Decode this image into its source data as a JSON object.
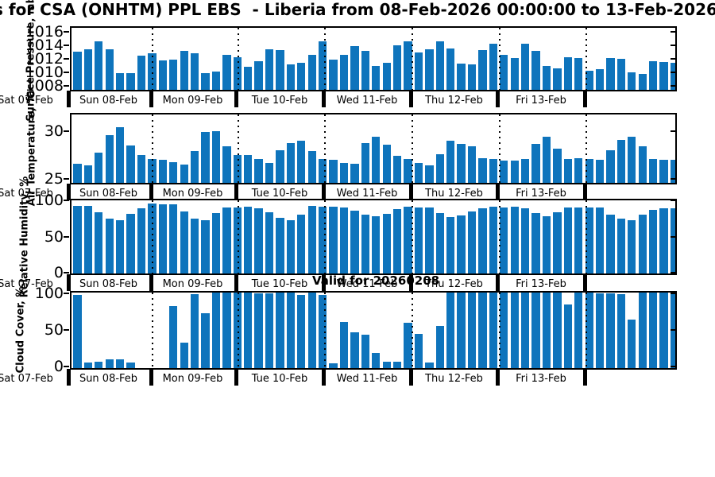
{
  "figure": {
    "title": "s for CSA (ONHTM) PPL EBS  - Liberia from 08-Feb-2026 00:00:00 to 13-Feb-2026 21:00:00",
    "annotation": "Valid for 20260208",
    "colors": {
      "bar": "#0e74bc",
      "axis": "#000000"
    }
  },
  "x_axis": {
    "day_labels": [
      "Sat 07-Feb",
      "Sun 08-Feb",
      "Mon 09-Feb",
      "Tue 10-Feb",
      "Wed 11-Feb",
      "Thu 12-Feb",
      "Fri 13-Feb"
    ]
  },
  "chart_data": [
    {
      "type": "bar",
      "name": "surface-pressure",
      "ylabel": "Surface Pressure, mb",
      "yticks": [
        1016,
        1014,
        1012,
        1010,
        1008
      ],
      "ylim": [
        1007.2,
        1016.8
      ],
      "values": [
        1012.8,
        1013.2,
        1014.3,
        1013.2,
        1009.7,
        1009.7,
        1012.2,
        1012.6,
        1011.5,
        1011.6,
        1013.0,
        1012.6,
        1009.7,
        1009.9,
        1012.3,
        1012.0,
        1010.6,
        1011.4,
        1013.2,
        1013.1,
        1010.9,
        1011.2,
        1012.4,
        1014.4,
        1011.6,
        1012.4,
        1013.7,
        1012.9,
        1010.7,
        1011.2,
        1013.8,
        1014.3,
        1012.7,
        1013.2,
        1014.4,
        1013.3,
        1011.1,
        1010.9,
        1013.1,
        1014.0,
        1012.3,
        1011.9,
        1014.0,
        1013.0,
        1010.7,
        1010.4,
        1012.0,
        1011.9,
        1010.0,
        1010.2,
        1011.9,
        1011.8,
        1009.8,
        1009.5,
        1011.4,
        1011.3,
        1011.2
      ]
    },
    {
      "type": "bar",
      "name": "air-temperature",
      "ylabel": "Air Temperature, °C",
      "yticks": [
        30,
        25
      ],
      "ylim": [
        24.4,
        31.9
      ],
      "values": [
        26.4,
        26.2,
        27.6,
        29.4,
        30.2,
        28.3,
        27.3,
        26.9,
        26.8,
        26.6,
        26.3,
        27.7,
        29.7,
        29.8,
        28.2,
        27.3,
        27.3,
        26.9,
        26.5,
        27.8,
        28.6,
        28.8,
        27.7,
        26.9,
        26.8,
        26.5,
        26.4,
        28.6,
        29.2,
        28.4,
        27.2,
        26.9,
        26.5,
        26.2,
        27.4,
        28.8,
        28.5,
        28.2,
        27.0,
        26.9,
        26.7,
        26.7,
        26.9,
        28.5,
        29.2,
        28.0,
        26.9,
        27.0,
        26.9,
        26.8,
        27.8,
        28.9,
        29.2,
        28.2,
        26.9,
        26.8,
        26.8
      ]
    },
    {
      "type": "bar",
      "name": "relative-humidity",
      "ylabel": "Relative Humidity, %",
      "yticks": [
        100,
        50,
        0
      ],
      "ylim": [
        -3,
        102
      ],
      "values": [
        90,
        90,
        81,
        72,
        70,
        79,
        87,
        93,
        92,
        92,
        82,
        73,
        70,
        80,
        88,
        88,
        89,
        87,
        81,
        74,
        70,
        78,
        90,
        89,
        89,
        88,
        84,
        78,
        76,
        79,
        86,
        89,
        88,
        88,
        80,
        75,
        77,
        82,
        87,
        89,
        88,
        89,
        87,
        80,
        76,
        81,
        88,
        88,
        88,
        88,
        78,
        72,
        70,
        78,
        85,
        87,
        87
      ]
    },
    {
      "type": "bar",
      "name": "cloud-cover",
      "ylabel": "Cloud Cover, %",
      "yticks": [
        100,
        50,
        0
      ],
      "ylim": [
        -4,
        103
      ],
      "values": [
        95,
        4,
        5,
        8,
        8,
        4,
        0,
        0,
        0,
        80,
        31,
        97,
        71,
        100,
        100,
        100,
        100,
        98,
        98,
        100,
        100,
        96,
        100,
        95,
        2,
        59,
        45,
        41,
        17,
        5,
        5,
        58,
        43,
        4,
        53,
        100,
        100,
        100,
        100,
        100,
        100,
        100,
        99,
        100,
        100,
        100,
        82,
        100,
        100,
        98,
        98,
        97,
        62,
        100,
        100,
        100,
        100
      ]
    }
  ]
}
